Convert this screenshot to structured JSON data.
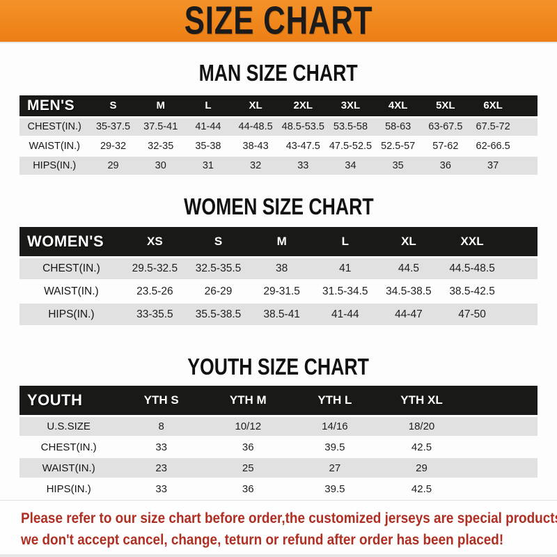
{
  "banner": {
    "title": "SIZE CHART",
    "background_color": "#F0871D",
    "text_color": "#1B1B1B"
  },
  "sections": [
    {
      "id": "men",
      "heading": "MAN SIZE CHART",
      "header_label": "MEN'S",
      "columns": [
        "S",
        "M",
        "L",
        "XL",
        "2XL",
        "3XL",
        "4XL",
        "5XL",
        "6XL"
      ],
      "rows": [
        {
          "label": "CHEST(IN.)",
          "values": [
            "35-37.5",
            "37.5-41",
            "41-44",
            "44-48.5",
            "48.5-53.5",
            "53.5-58",
            "58-63",
            "63-67.5",
            "67.5-72"
          ]
        },
        {
          "label": "WAIST(IN.)",
          "values": [
            "29-32",
            "32-35",
            "35-38",
            "38-43",
            "43-47.5",
            "47.5-52.5",
            "52.5-57",
            "57-62",
            "62-66.5"
          ]
        },
        {
          "label": "HIPS(IN.)",
          "values": [
            "29",
            "30",
            "31",
            "32",
            "33",
            "34",
            "35",
            "36",
            "37"
          ]
        }
      ]
    },
    {
      "id": "women",
      "heading": "WOMEN SIZE CHART",
      "header_label": "WOMEN'S",
      "columns": [
        "XS",
        "S",
        "M",
        "L",
        "XL",
        "XXL"
      ],
      "rows": [
        {
          "label": "CHEST(IN.)",
          "values": [
            "29.5-32.5",
            "32.5-35.5",
            "38",
            "41",
            "44.5",
            "44.5-48.5"
          ]
        },
        {
          "label": "WAIST(IN.)",
          "values": [
            "23.5-26",
            "26-29",
            "29-31.5",
            "31.5-34.5",
            "34.5-38.5",
            "38.5-42.5"
          ]
        },
        {
          "label": "HIPS(IN.)",
          "values": [
            "33-35.5",
            "35.5-38.5",
            "38.5-41",
            "41-44",
            "44-47",
            "47-50"
          ]
        }
      ]
    },
    {
      "id": "youth",
      "heading": "YOUTH SIZE CHART",
      "header_label": "YOUTH",
      "columns": [
        "YTH S",
        "YTH M",
        "YTH L",
        "YTH XL"
      ],
      "rows": [
        {
          "label": "U.S.SIZE",
          "values": [
            "8",
            "10/12",
            "14/16",
            "18/20"
          ]
        },
        {
          "label": "CHEST(IN.)",
          "values": [
            "33",
            "36",
            "39.5",
            "42.5"
          ]
        },
        {
          "label": "WAIST(IN.)",
          "values": [
            "23",
            "25",
            "27",
            "29"
          ]
        },
        {
          "label": "HIPS(IN.)",
          "values": [
            "33",
            "36",
            "39.5",
            "42.5"
          ]
        }
      ]
    }
  ],
  "footer": {
    "line1": "Please refer to our size chart before order,the customized jerseys are special products,",
    "line2": "we don't accept cancel, change, teturn or refund after order has been placed!",
    "text_color": "#B02F23"
  },
  "colors": {
    "banner_orange": "#F0871D",
    "table_header_black": "#191917",
    "row_stripe_gray": "#E1E1E1",
    "disclaimer_red": "#B02F23"
  }
}
